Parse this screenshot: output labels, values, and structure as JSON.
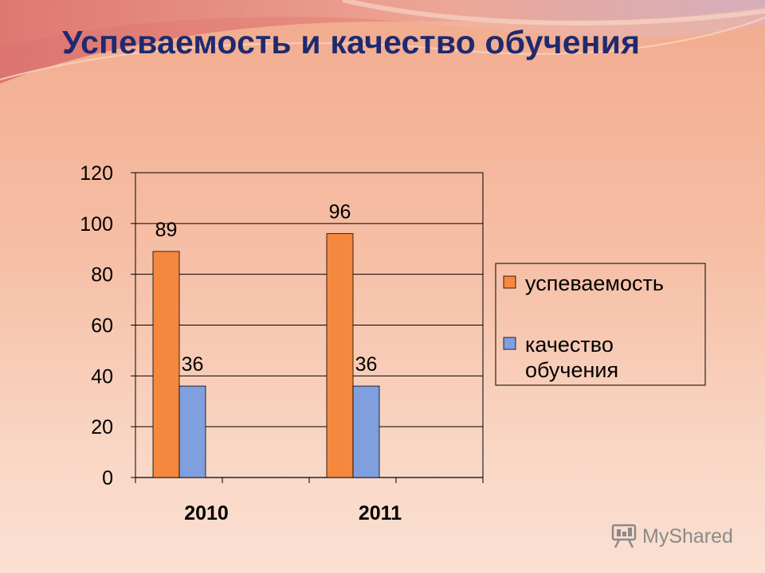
{
  "slide": {
    "title": "Успеваемость и качество обучения"
  },
  "chart_data": {
    "type": "bar",
    "categories": [
      "2010",
      "2011"
    ],
    "series": [
      {
        "name": "успеваемость",
        "values": [
          89,
          96
        ],
        "color": "#f5883f"
      },
      {
        "name": "качество обучения",
        "values": [
          36,
          36
        ],
        "color": "#7f9fde"
      }
    ],
    "ylim": [
      0,
      120
    ],
    "yticks": [
      "0",
      "20",
      "40",
      "60",
      "80",
      "100",
      "120"
    ],
    "grid": true,
    "legend": "right",
    "data_labels": true
  },
  "watermark": {
    "text": "MyShared",
    "icon": "presentation-board-icon"
  }
}
